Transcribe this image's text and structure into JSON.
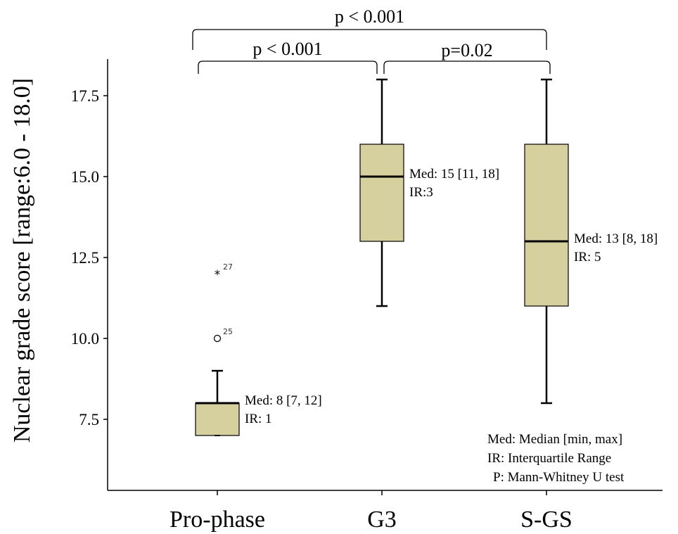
{
  "chart_data": {
    "type": "boxplot",
    "ylabel": "Nuclear grade score [range:6.0 - 18.0]",
    "xlabel": "",
    "y_ticks": [
      7.5,
      10.0,
      12.5,
      15.0,
      17.5
    ],
    "y_tick_labels": [
      "7.5",
      "10.0",
      "12.5",
      "15.0",
      "17.5"
    ],
    "categories": [
      "Pro-phase",
      "G3",
      "S-GS"
    ],
    "box_color": "#d6cf9e",
    "groups": [
      {
        "name": "Pro-phase",
        "q1": 7,
        "median": 8,
        "q3": 8,
        "whisker_low": 7,
        "whisker_high": 9,
        "outliers": [
          {
            "value": 10,
            "label": "25",
            "marker": "circle"
          },
          {
            "value": 12,
            "label": "27",
            "marker": "star"
          }
        ],
        "annotation": [
          "Med: 8 [7, 12]",
          "IR: 1"
        ]
      },
      {
        "name": "G3",
        "q1": 13,
        "median": 15,
        "q3": 16,
        "whisker_low": 11,
        "whisker_high": 18,
        "outliers": [],
        "annotation": [
          "Med: 15 [11, 18]",
          "IR:3"
        ]
      },
      {
        "name": "S-GS",
        "q1": 11,
        "median": 13,
        "q3": 16,
        "whisker_low": 8,
        "whisker_high": 18,
        "outliers": [],
        "annotation": [
          "Med: 13 [8, 18]",
          "IR: 5"
        ]
      }
    ],
    "comparisons": [
      {
        "from": "Pro-phase",
        "to": "G3",
        "label": "p < 0.001"
      },
      {
        "from": "G3",
        "to": "S-GS",
        "label": "p=0.02"
      },
      {
        "from": "Pro-phase",
        "to": "S-GS",
        "label": "p < 0.001"
      }
    ],
    "legend_notes": [
      "Med: Median [min, max]",
      "IR: Interquartile Range",
      "P: Mann-Whitney U test"
    ]
  }
}
